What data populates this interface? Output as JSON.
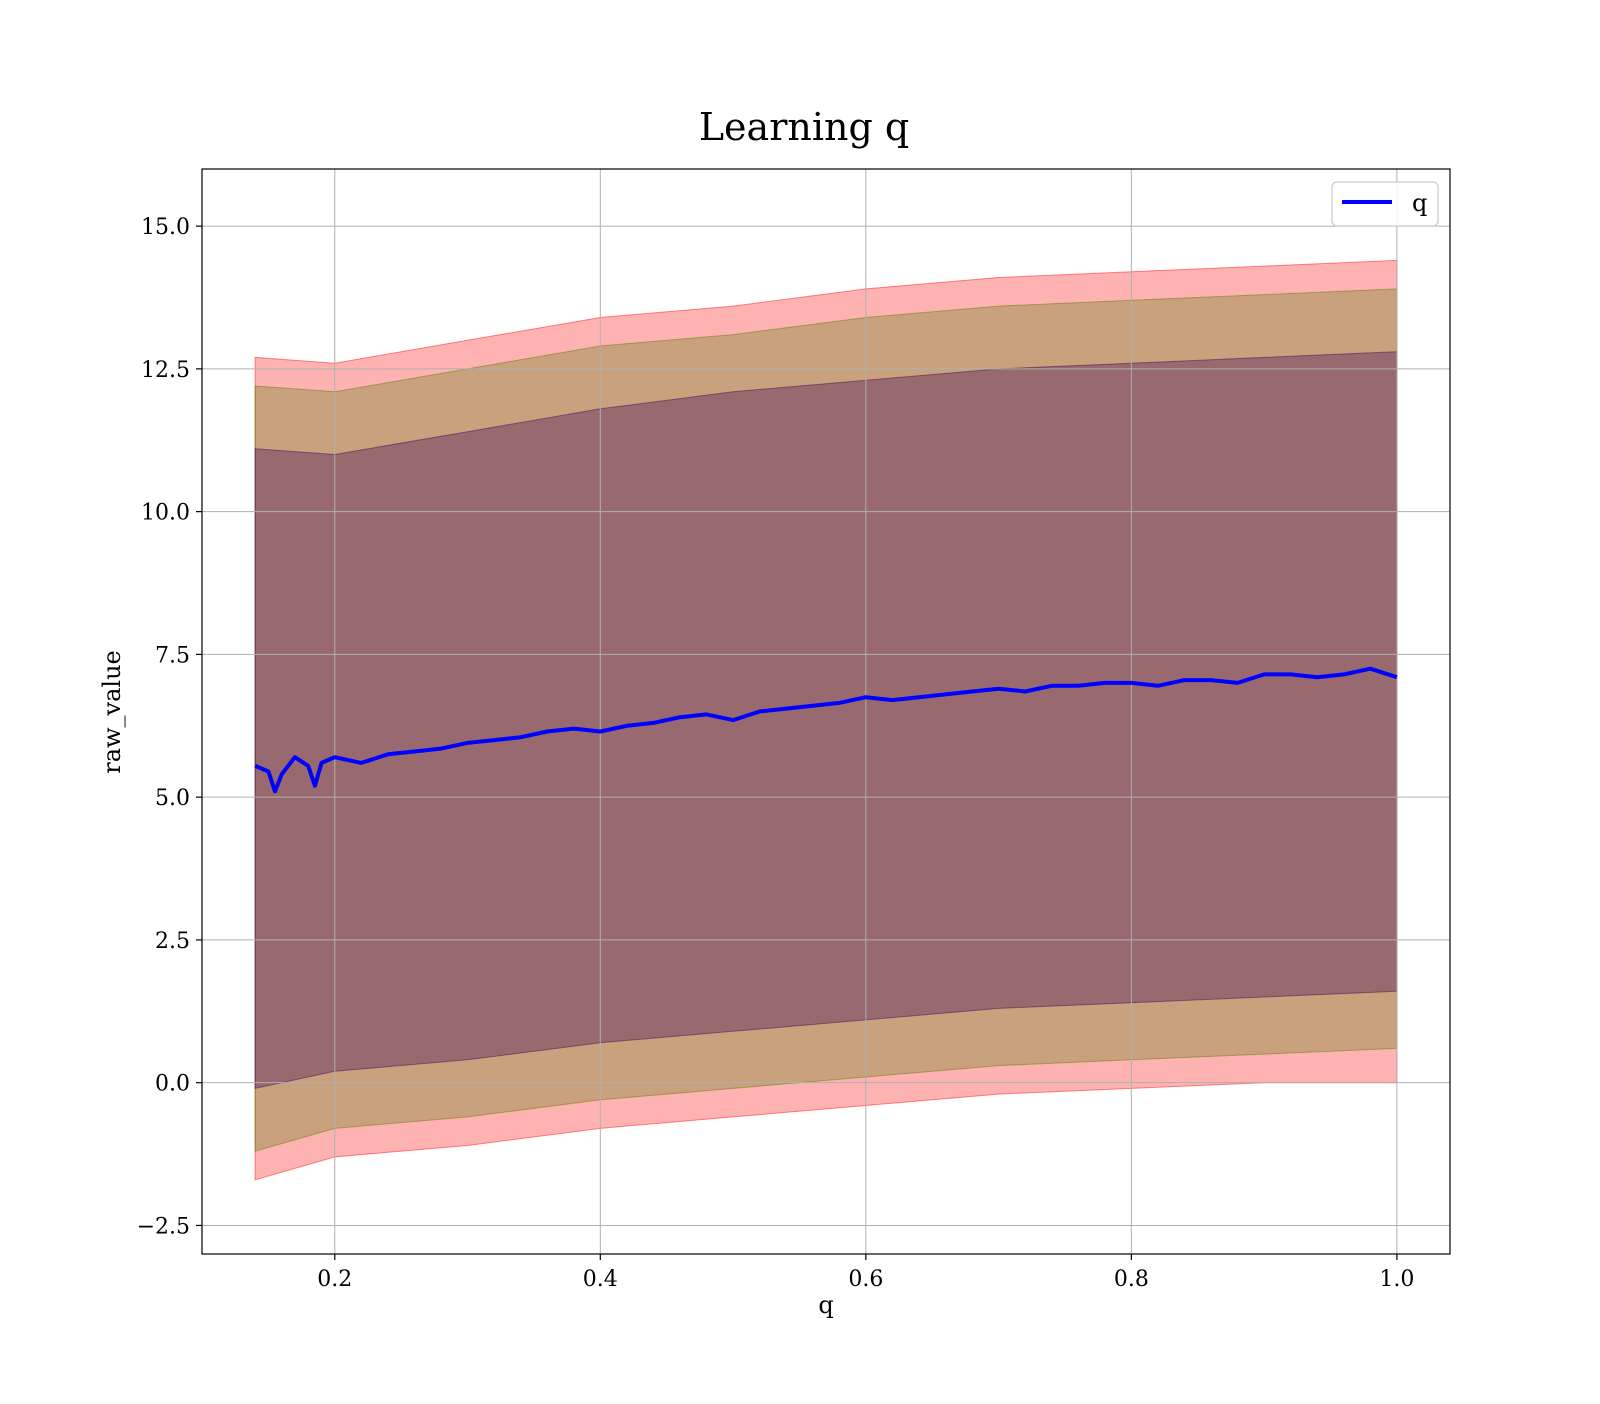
{
  "chart_data": {
    "type": "line",
    "title": "Learning q",
    "xlabel": "q",
    "ylabel": "raw_value",
    "xlim": [
      0.1,
      1.04
    ],
    "ylim": [
      -3.0,
      16.0
    ],
    "x_ticks": [
      0.2,
      0.4,
      0.6,
      0.8,
      1.0
    ],
    "x_tick_labels": [
      "0.2",
      "0.4",
      "0.6",
      "0.8",
      "1.0"
    ],
    "y_ticks": [
      -2.5,
      0.0,
      2.5,
      5.0,
      7.5,
      10.0,
      12.5,
      15.0
    ],
    "y_tick_labels": [
      "−2.5",
      "0.0",
      "2.5",
      "5.0",
      "7.5",
      "10.0",
      "12.5",
      "15.0"
    ],
    "grid": true,
    "legend_position": "top-right",
    "series": [
      {
        "name": "q",
        "color": "#0000ff",
        "x": [
          0.14,
          0.15,
          0.155,
          0.16,
          0.17,
          0.18,
          0.185,
          0.19,
          0.2,
          0.22,
          0.24,
          0.26,
          0.28,
          0.3,
          0.32,
          0.34,
          0.36,
          0.38,
          0.4,
          0.42,
          0.44,
          0.46,
          0.48,
          0.5,
          0.52,
          0.54,
          0.56,
          0.58,
          0.6,
          0.62,
          0.64,
          0.66,
          0.68,
          0.7,
          0.72,
          0.74,
          0.76,
          0.78,
          0.8,
          0.82,
          0.84,
          0.86,
          0.88,
          0.9,
          0.92,
          0.94,
          0.96,
          0.98,
          1.0
        ],
        "values": [
          5.55,
          5.45,
          5.1,
          5.4,
          5.7,
          5.55,
          5.2,
          5.6,
          5.7,
          5.6,
          5.75,
          5.8,
          5.85,
          5.95,
          6.0,
          6.05,
          6.15,
          6.2,
          6.15,
          6.25,
          6.3,
          6.4,
          6.45,
          6.35,
          6.5,
          6.55,
          6.6,
          6.65,
          6.75,
          6.7,
          6.75,
          6.8,
          6.85,
          6.9,
          6.85,
          6.95,
          6.95,
          7.0,
          7.0,
          6.95,
          7.05,
          7.05,
          7.0,
          7.15,
          7.15,
          7.1,
          7.15,
          7.25,
          7.1
        ]
      }
    ],
    "bands": [
      {
        "color": "#ff0000",
        "opacity": 0.3,
        "x": [
          0.14,
          0.2,
          0.3,
          0.4,
          0.5,
          0.6,
          0.7,
          0.8,
          0.9,
          1.0
        ],
        "upper": [
          12.7,
          12.6,
          13.0,
          13.4,
          13.6,
          13.9,
          14.1,
          14.2,
          14.3,
          14.4
        ],
        "lower": [
          -1.7,
          -1.3,
          -1.1,
          -0.8,
          -0.6,
          -0.4,
          -0.2,
          -0.1,
          0.0,
          0.0
        ]
      },
      {
        "color": "#4d7c00",
        "opacity": 0.3,
        "x": [
          0.14,
          0.2,
          0.3,
          0.4,
          0.5,
          0.6,
          0.7,
          0.8,
          0.9,
          1.0
        ],
        "upper": [
          12.2,
          12.1,
          12.5,
          12.9,
          13.1,
          13.4,
          13.6,
          13.7,
          13.8,
          13.9
        ],
        "lower": [
          -1.2,
          -0.8,
          -0.6,
          -0.3,
          -0.1,
          0.1,
          0.3,
          0.4,
          0.5,
          0.6
        ]
      },
      {
        "color": "#3d0059",
        "opacity": 0.35,
        "x": [
          0.14,
          0.2,
          0.3,
          0.4,
          0.5,
          0.6,
          0.7,
          0.8,
          0.9,
          1.0
        ],
        "upper": [
          11.1,
          11.0,
          11.4,
          11.8,
          12.1,
          12.3,
          12.5,
          12.6,
          12.7,
          12.8
        ],
        "lower": [
          -0.1,
          0.2,
          0.4,
          0.7,
          0.9,
          1.1,
          1.3,
          1.4,
          1.5,
          1.6
        ]
      }
    ]
  }
}
